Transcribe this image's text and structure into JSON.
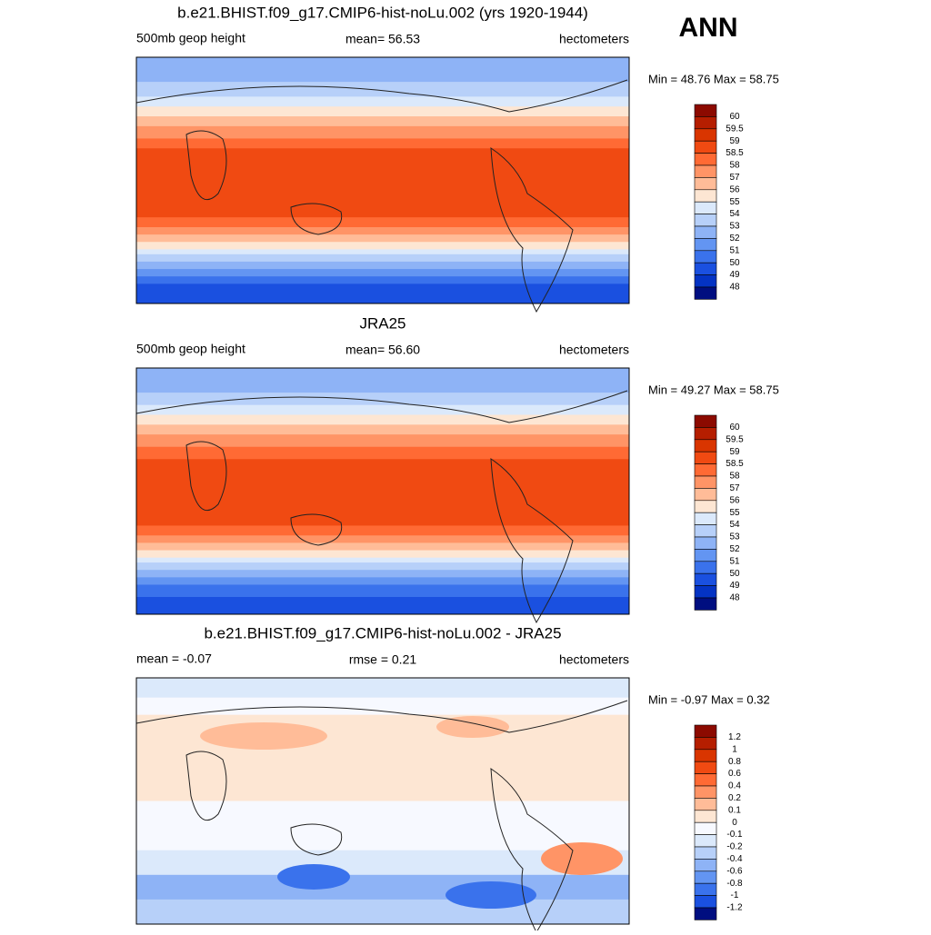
{
  "figure_title": "ANN",
  "panels": [
    {
      "title": "b.e21.BHIST.f09_g17.CMIP6-hist-noLu.002 (yrs 1920-1944)",
      "left": "500mb geop height",
      "center": "mean=  56.53",
      "right": "hectometers",
      "minmax": "Min =  48.76 Max =  58.75",
      "colorbar": {
        "labels": [
          60,
          59.5,
          59,
          58.5,
          58,
          57,
          56,
          55,
          54,
          53,
          52,
          51,
          50,
          49,
          48
        ],
        "colors": [
          "#8c0a00",
          "#b51e00",
          "#d93500",
          "#f04a12",
          "#ff6a34",
          "#ff9466",
          "#ffbc98",
          "#fde6d3",
          "#dbe9fb",
          "#b7d0f9",
          "#8eb3f6",
          "#6395f2",
          "#3a72ec",
          "#1a50e0",
          "#0433c4",
          "#000e80"
        ]
      }
    },
    {
      "title": "JRA25",
      "left": "500mb geop height",
      "center": "mean=  56.60",
      "right": "hectometers",
      "minmax": "Min =  49.27 Max =  58.75",
      "colorbar": {
        "labels": [
          60,
          59.5,
          59,
          58.5,
          58,
          57,
          56,
          55,
          54,
          53,
          52,
          51,
          50,
          49,
          48
        ],
        "colors": [
          "#8c0a00",
          "#b51e00",
          "#d93500",
          "#f04a12",
          "#ff6a34",
          "#ff9466",
          "#ffbc98",
          "#fde6d3",
          "#dbe9fb",
          "#b7d0f9",
          "#8eb3f6",
          "#6395f2",
          "#3a72ec",
          "#1a50e0",
          "#0433c4",
          "#000e80"
        ]
      }
    },
    {
      "title": "b.e21.BHIST.f09_g17.CMIP6-hist-noLu.002 - JRA25",
      "left": "mean =  -0.07",
      "center": "rmse =   0.21",
      "right": "hectometers",
      "minmax": "Min =  -0.97 Max =   0.32",
      "colorbar": {
        "labels": [
          1.2,
          1,
          0.8,
          0.6,
          0.4,
          0.2,
          0.1,
          0,
          -0.1,
          -0.2,
          -0.4,
          -0.6,
          -0.8,
          -1,
          -1.2
        ],
        "colors": [
          "#8c0a00",
          "#b51e00",
          "#d93500",
          "#f04a12",
          "#ff6a34",
          "#ff9466",
          "#ffbc98",
          "#fde6d3",
          "#f7f9ff",
          "#dbe9fb",
          "#b7d0f9",
          "#8eb3f6",
          "#6395f2",
          "#3a72ec",
          "#1a50e0",
          "#000e80"
        ]
      }
    }
  ]
}
